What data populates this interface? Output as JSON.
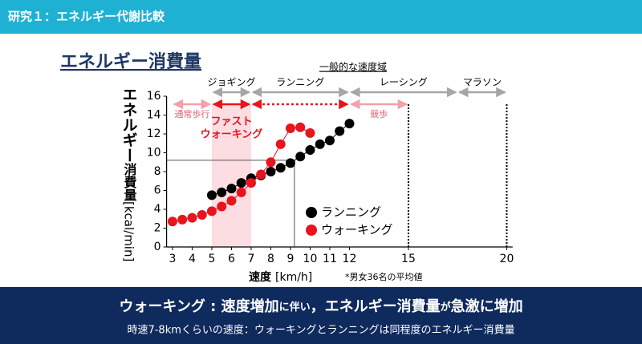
{
  "slide": {
    "header": "研究１：エネルギー代謝比較",
    "heading": "エネルギー消費量",
    "footer_title": [
      "ウォーキング : 速度増加",
      "に伴い",
      "，エネルギー消費量",
      "が",
      "急激に増加"
    ],
    "footer_text": "時速7-8kmくらいの速度：ウォーキングとランニングは同程度のエネルギー消費量"
  },
  "chart_data": {
    "type": "scatter",
    "y_label": [
      "エネルギー",
      "消費量",
      "[kcal/min]"
    ],
    "x_label": [
      "速度",
      "[km/h]"
    ],
    "note": "*男女36名の平均値",
    "range_title": "一般的な速度域",
    "xlim": [
      2.7,
      20.3
    ],
    "ylim": [
      0,
      16
    ],
    "xticks": [
      3,
      4,
      5,
      6,
      7,
      8,
      9,
      10,
      11,
      12,
      15,
      20
    ],
    "yticks": [
      0,
      2,
      4,
      6,
      8,
      10,
      12,
      14,
      16
    ],
    "series": [
      {
        "name": "ランニング",
        "color": "#000000",
        "x": [
          5,
          5.5,
          6,
          6.5,
          7,
          7.5,
          8,
          8.5,
          9,
          9.5,
          10,
          10.5,
          11,
          11.5,
          12
        ],
        "values": [
          5.5,
          5.8,
          6.2,
          6.8,
          7.3,
          7.6,
          8.0,
          8.4,
          8.9,
          9.6,
          10.3,
          10.9,
          11.3,
          12.3,
          13.1
        ]
      },
      {
        "name": "ウォーキング",
        "color": "#e8141e",
        "x": [
          3,
          3.5,
          4,
          4.5,
          5,
          5.5,
          6,
          6.5,
          7,
          7.5,
          8,
          8.5,
          9,
          9.5,
          10
        ],
        "values": [
          2.7,
          2.9,
          3.1,
          3.4,
          3.8,
          4.3,
          4.9,
          5.8,
          6.8,
          7.7,
          9.0,
          10.9,
          12.6,
          12.7,
          12.1
        ]
      }
    ],
    "speed_bands": [
      {
        "label": "ジョギング",
        "from": 5,
        "to": 7
      },
      {
        "label": "ランニング",
        "from": 7,
        "to": 12
      },
      {
        "label": "レーシング",
        "from": 12,
        "to": 17.5
      },
      {
        "label": "マラソン",
        "from": 17.5,
        "to": 20
      }
    ],
    "band_color": "#a6a6a6",
    "walking_bands": [
      {
        "label": "通常歩行",
        "from": 3,
        "to": 5,
        "color": "#f2a0aa"
      },
      {
        "label_lines": [
          "ファスト",
          "ウォーキング"
        ],
        "from": 5,
        "to": 7,
        "color": "#e8141e",
        "shade": true
      },
      {
        "from": 7,
        "to": 12,
        "color": "#e8141e",
        "dotted": true
      },
      {
        "label": "競歩",
        "from": 12,
        "to": 15,
        "color": "#f2a0aa"
      }
    ],
    "limit_lines": [
      15,
      20
    ],
    "reference": {
      "x": 9.2,
      "y": 9.2
    },
    "legend": "inside-lower-right"
  }
}
